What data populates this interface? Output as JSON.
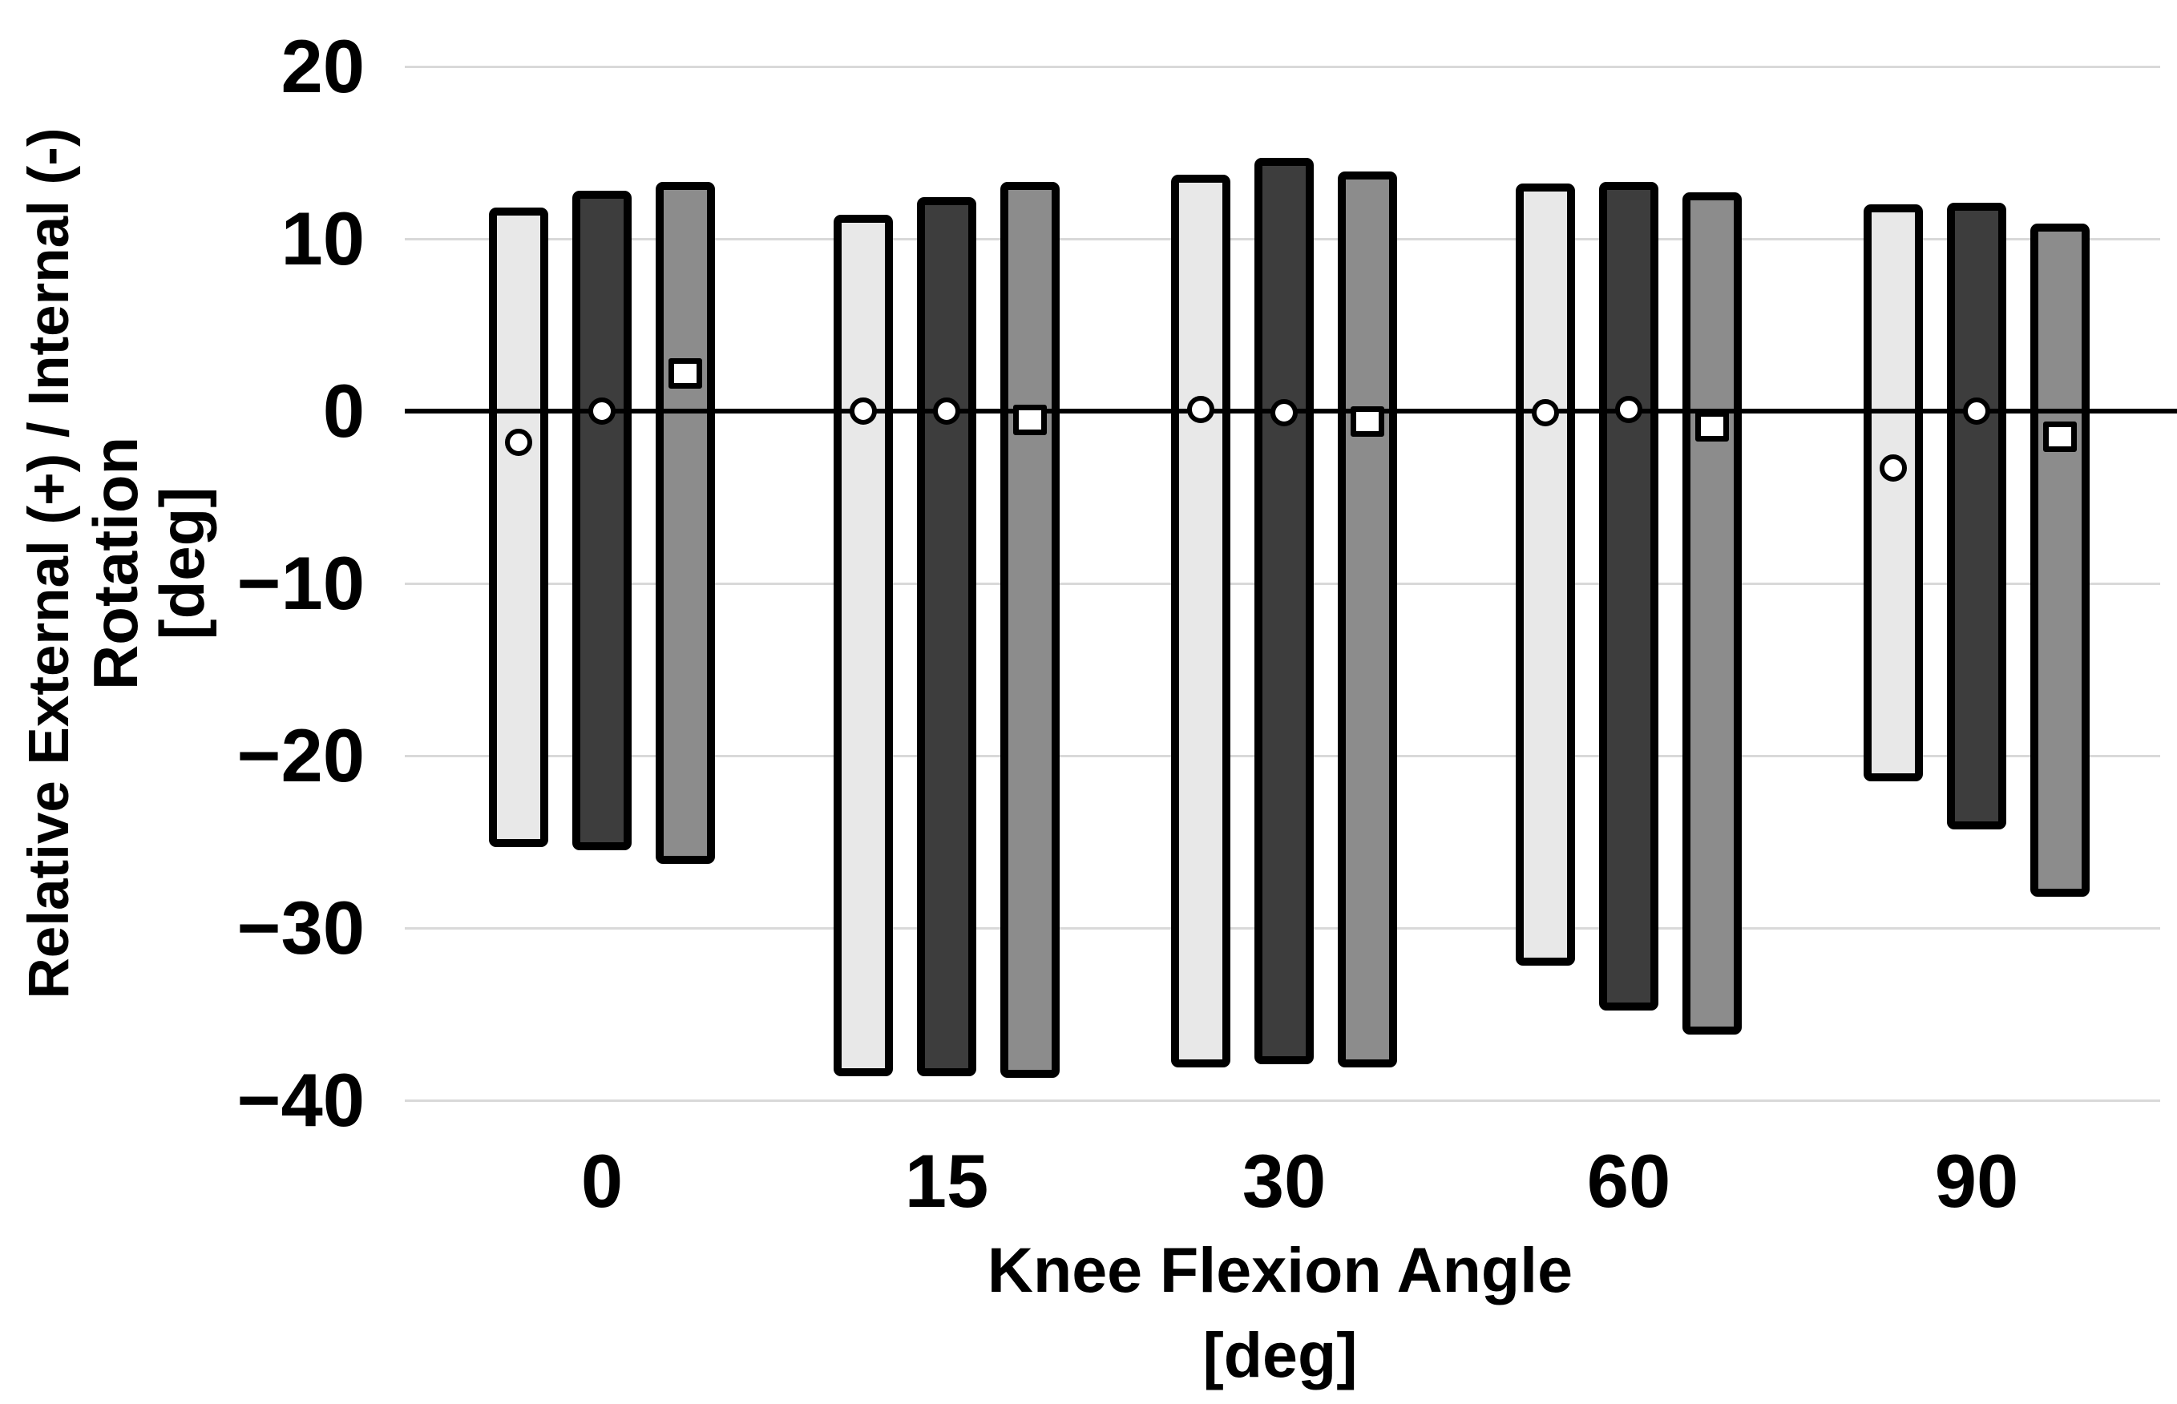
{
  "page": {
    "background": "#ffffff"
  },
  "chart_data": {
    "type": "bar",
    "variant": "grouped-floating-range-bars-with-mean-markers",
    "title": "",
    "ylabel_lines": [
      "Relative External (+) / Internal (-)",
      "Rotation",
      "[deg]"
    ],
    "xlabel_lines": [
      "Knee Flexion Angle",
      "[deg]"
    ],
    "xlabel": "Knee Flexion Angle [deg]",
    "ylabel": "Relative External (+) / Internal (-) Rotation [deg]",
    "categories": [
      "0",
      "15",
      "30",
      "60",
      "90"
    ],
    "ylim": [
      -40,
      20
    ],
    "yticks": [
      {
        "value": 20,
        "label": "20"
      },
      {
        "value": 10,
        "label": "10"
      },
      {
        "value": 0,
        "label": "0"
      },
      {
        "value": -10,
        "label": "−10"
      },
      {
        "value": -20,
        "label": "−20"
      },
      {
        "value": -30,
        "label": "−30"
      },
      {
        "value": -40,
        "label": "−40"
      }
    ],
    "grid": true,
    "legend": "none",
    "zero_axis": true,
    "gridline_color": "#d9d9d9",
    "axis_color": "#000000",
    "marker_fill": "#ffffff",
    "series": [
      {
        "name": "light-gray-bars",
        "fill": "#e8e8e8",
        "stroke": "#000000",
        "marker": "circle",
        "range_low": [
          -25.3,
          -38.6,
          -38.1,
          -32.2,
          -21.5
        ],
        "range_high": [
          11.8,
          11.4,
          13.7,
          13.2,
          12.0
        ],
        "marker_value": [
          -1.8,
          0.0,
          0.1,
          -0.1,
          -3.3
        ]
      },
      {
        "name": "dark-gray-bars",
        "fill": "#3d3d3d",
        "stroke": "#000000",
        "marker": "circle",
        "range_low": [
          -25.5,
          -38.6,
          -37.9,
          -34.8,
          -24.3
        ],
        "range_high": [
          12.8,
          12.4,
          14.7,
          13.3,
          12.1
        ],
        "marker_value": [
          0.0,
          0.0,
          -0.1,
          0.1,
          0.0
        ]
      },
      {
        "name": "medium-gray-bars",
        "fill": "#8c8c8c",
        "stroke": "#000000",
        "marker": "square",
        "range_low": [
          -26.3,
          -38.7,
          -38.1,
          -36.2,
          -28.2
        ],
        "range_high": [
          13.3,
          13.3,
          13.9,
          12.7,
          10.9
        ],
        "marker_value": [
          2.2,
          -0.5,
          -0.6,
          -0.9,
          -1.5
        ]
      }
    ]
  }
}
